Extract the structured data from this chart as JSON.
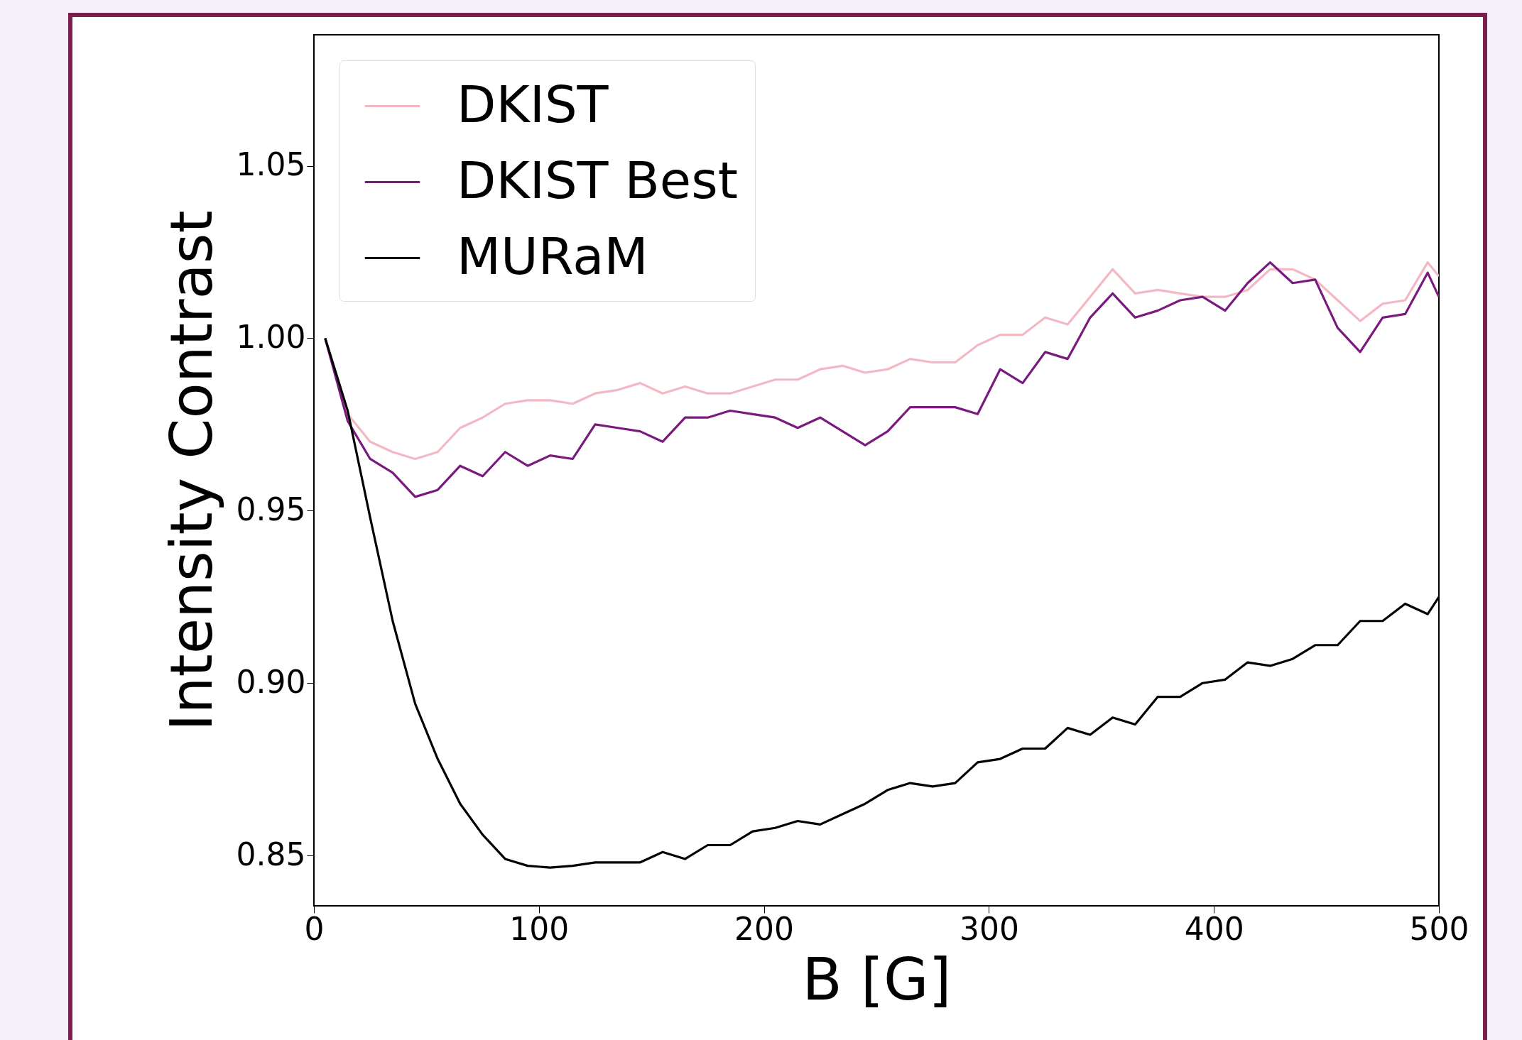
{
  "chart_data": {
    "type": "line",
    "xlabel": "B [G]",
    "ylabel": "Intensity Contrast",
    "x": [
      5,
      15,
      25,
      35,
      45,
      55,
      65,
      75,
      85,
      95,
      105,
      115,
      125,
      135,
      145,
      155,
      165,
      175,
      185,
      195,
      205,
      215,
      225,
      235,
      245,
      255,
      265,
      275,
      285,
      295,
      305,
      315,
      325,
      335,
      345,
      355,
      365,
      375,
      385,
      395,
      405,
      415,
      425,
      435,
      445,
      455,
      465,
      475,
      485,
      495,
      500
    ],
    "series": [
      {
        "name": "DKIST",
        "color": "#f4b8c4",
        "values": [
          1.0,
          0.978,
          0.97,
          0.967,
          0.965,
          0.967,
          0.974,
          0.977,
          0.981,
          0.982,
          0.982,
          0.981,
          0.984,
          0.985,
          0.987,
          0.984,
          0.986,
          0.984,
          0.984,
          0.986,
          0.988,
          0.988,
          0.991,
          0.992,
          0.99,
          0.991,
          0.994,
          0.993,
          0.993,
          0.998,
          1.001,
          1.001,
          1.006,
          1.004,
          1.012,
          1.02,
          1.013,
          1.014,
          1.013,
          1.012,
          1.012,
          1.014,
          1.02,
          1.02,
          1.017,
          1.011,
          1.005,
          1.01,
          1.011,
          1.022,
          1.018
        ]
      },
      {
        "name": "DKIST Best",
        "color": "#7b1a7e",
        "values": [
          1.0,
          0.976,
          0.965,
          0.961,
          0.954,
          0.956,
          0.963,
          0.96,
          0.967,
          0.963,
          0.966,
          0.965,
          0.975,
          0.974,
          0.973,
          0.97,
          0.977,
          0.977,
          0.979,
          0.978,
          0.977,
          0.974,
          0.977,
          0.973,
          0.969,
          0.973,
          0.98,
          0.98,
          0.98,
          0.978,
          0.991,
          0.987,
          0.996,
          0.994,
          1.006,
          1.013,
          1.006,
          1.008,
          1.011,
          1.012,
          1.008,
          1.016,
          1.022,
          1.016,
          1.017,
          1.003,
          0.996,
          1.006,
          1.007,
          1.019,
          1.012
        ]
      },
      {
        "name": "MURaM",
        "color": "#000000",
        "values": [
          1.0,
          0.979,
          0.948,
          0.918,
          0.894,
          0.878,
          0.865,
          0.856,
          0.849,
          0.847,
          0.8465,
          0.847,
          0.848,
          0.848,
          0.848,
          0.851,
          0.849,
          0.853,
          0.853,
          0.857,
          0.858,
          0.86,
          0.859,
          0.862,
          0.865,
          0.869,
          0.871,
          0.87,
          0.871,
          0.877,
          0.878,
          0.881,
          0.881,
          0.887,
          0.885,
          0.89,
          0.888,
          0.896,
          0.896,
          0.9,
          0.901,
          0.906,
          0.905,
          0.907,
          0.911,
          0.911,
          0.918,
          0.918,
          0.923,
          0.92,
          0.925
        ]
      }
    ],
    "xlim": [
      0,
      500
    ],
    "xticks": [
      0,
      100,
      200,
      300,
      400,
      500
    ],
    "ylim": [
      0.8354,
      1.088
    ],
    "yticks": [
      {
        "value": 0.85,
        "label": "0.85"
      },
      {
        "value": 0.9,
        "label": "0.90"
      },
      {
        "value": 0.95,
        "label": "0.95"
      },
      {
        "value": 1.0,
        "label": "1.00"
      },
      {
        "value": 1.05,
        "label": "1.05"
      }
    ],
    "legend": "top left",
    "grid": false,
    "line_style": "solid",
    "marker": "none"
  }
}
